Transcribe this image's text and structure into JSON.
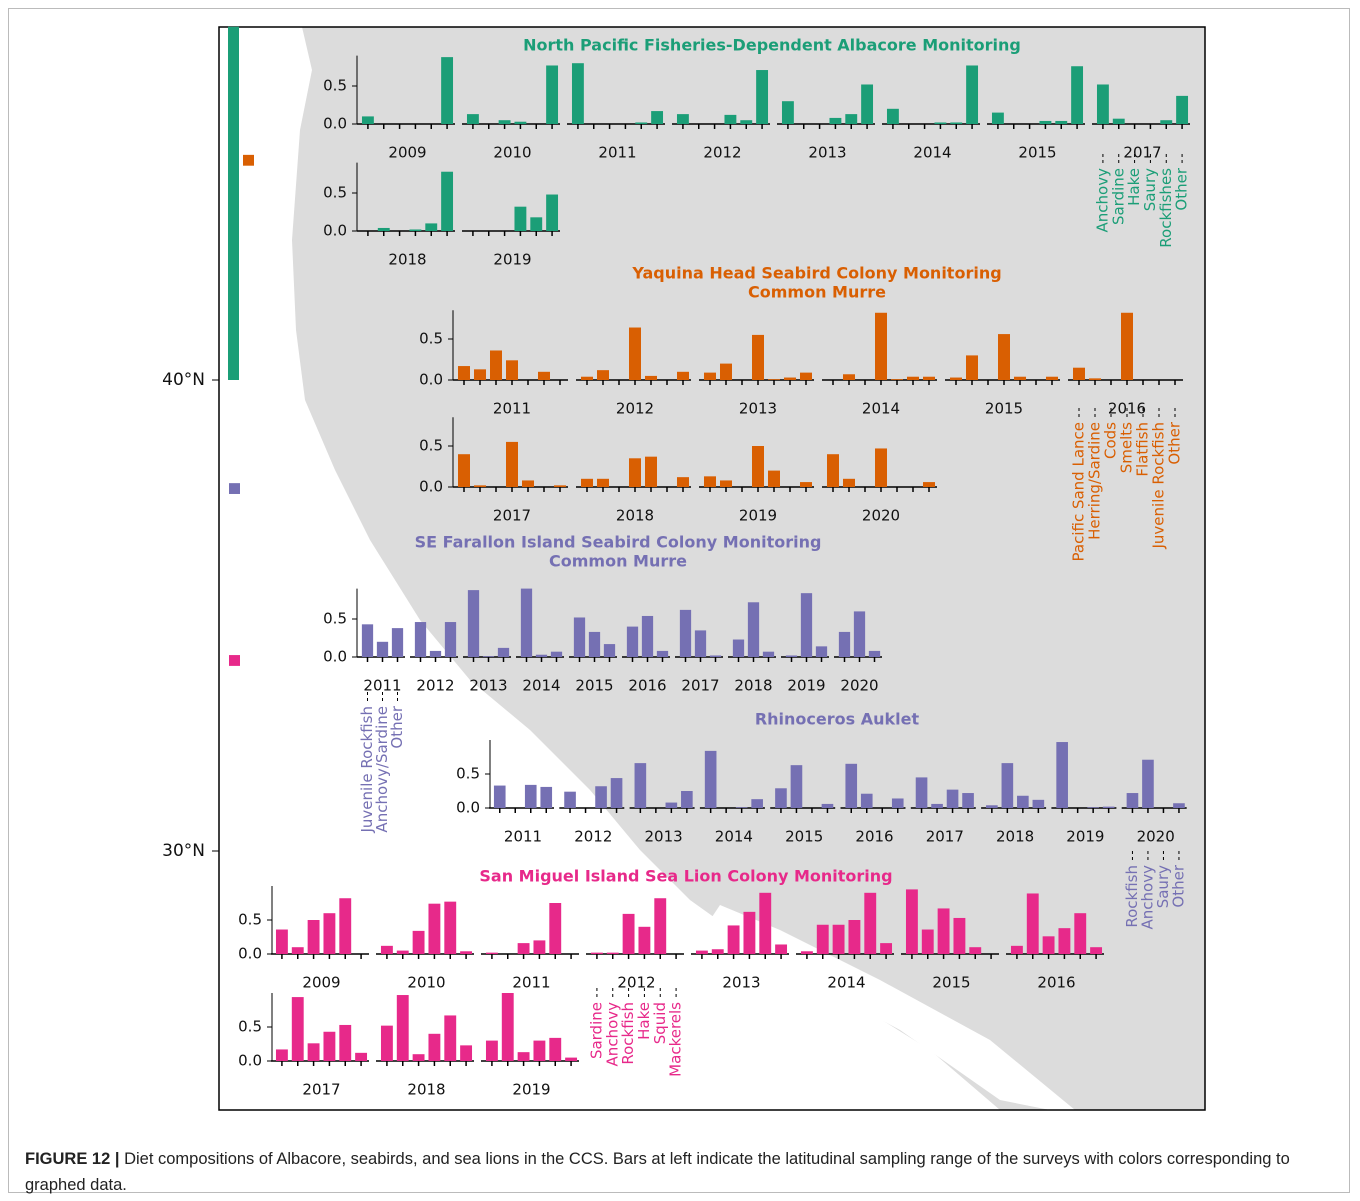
{
  "chart_data": [
    {
      "type": "bar",
      "title": "North Pacific Fisheries-Dependent Albacore Monitoring",
      "color": "#1b9e77",
      "categories": [
        "Anchovy",
        "Sardine",
        "Hake",
        "Saury",
        "Rockfishes",
        "Other"
      ],
      "ylim": [
        0,
        0.9
      ],
      "yticks": [
        {
          "value": 0,
          "label": "0.0"
        },
        0.5
      ],
      "panels": [
        {
          "label": "2009",
          "values": [
            0.1,
            0,
            0,
            0,
            0,
            0.88
          ]
        },
        {
          "label": "2010",
          "values": [
            0.13,
            0,
            0.05,
            0.03,
            0,
            0.77
          ]
        },
        {
          "label": "2011",
          "values": [
            0.8,
            0,
            0,
            0,
            0.02,
            0.17
          ]
        },
        {
          "label": "2012",
          "values": [
            0.13,
            0,
            0,
            0.12,
            0.05,
            0.71
          ]
        },
        {
          "label": "2013",
          "values": [
            0.3,
            0,
            0,
            0.08,
            0.13,
            0.52
          ]
        },
        {
          "label": "2014",
          "values": [
            0.2,
            0,
            0,
            0.02,
            0.02,
            0.77
          ]
        },
        {
          "label": "2015",
          "values": [
            0.15,
            0,
            0,
            0.04,
            0.04,
            0.76
          ]
        },
        {
          "label": "2017",
          "values": [
            0.52,
            0.07,
            0,
            0,
            0.05,
            0.37
          ]
        },
        {
          "label": "2018",
          "values": [
            0,
            0.04,
            0,
            0.02,
            0.1,
            0.78
          ]
        },
        {
          "label": "2019",
          "values": [
            0,
            0,
            0,
            0.32,
            0.18,
            0.48
          ]
        }
      ]
    },
    {
      "type": "bar",
      "title": "Yaquina Head Seabird Colony Monitoring",
      "subtitle": "Common Murre",
      "color": "#d95f02",
      "categories": [
        "Pacific Sand Lance",
        "Herring/Sardine",
        "Cods",
        "Smelts",
        "Flatfish",
        "Juvenile Rockfish",
        "Other"
      ],
      "ylim": [
        0,
        0.85
      ],
      "yticks": [
        {
          "value": 0,
          "label": "0.0"
        },
        0.5
      ],
      "panels": [
        {
          "label": "2011",
          "values": [
            0.17,
            0.13,
            0.36,
            0.24,
            0,
            0.1,
            0
          ]
        },
        {
          "label": "2012",
          "values": [
            0.04,
            0.12,
            0,
            0.64,
            0.05,
            0,
            0.1
          ]
        },
        {
          "label": "2013",
          "values": [
            0.09,
            0.2,
            0,
            0.55,
            0.01,
            0.03,
            0.09
          ]
        },
        {
          "label": "2014",
          "values": [
            0,
            0.07,
            0,
            0.82,
            0.01,
            0.04,
            0.04
          ]
        },
        {
          "label": "2015",
          "values": [
            0.03,
            0.3,
            0,
            0.56,
            0.04,
            0,
            0.04
          ]
        },
        {
          "label": "2016",
          "values": [
            0.15,
            0.02,
            0,
            0.82,
            0,
            0,
            0
          ]
        },
        {
          "label": "2017",
          "values": [
            0.4,
            0.02,
            0,
            0.55,
            0.08,
            0,
            0.02
          ]
        },
        {
          "label": "2018",
          "values": [
            0.1,
            0.1,
            0,
            0.35,
            0.37,
            0,
            0.12
          ]
        },
        {
          "label": "2019",
          "values": [
            0.13,
            0.08,
            0,
            0.5,
            0.2,
            0,
            0.06
          ]
        },
        {
          "label": "2020",
          "values": [
            0.4,
            0.1,
            0,
            0.47,
            0,
            0,
            0.06
          ]
        }
      ]
    },
    {
      "type": "bar",
      "title": "SE Farallon Island Seabird Colony Monitoring",
      "subtitle": "Common Murre",
      "color": "#7570b3",
      "categories": [
        "Juvenile Rockfish",
        "Anchovy/Sardine",
        "Other"
      ],
      "ylim": [
        0,
        0.9
      ],
      "yticks": [
        {
          "value": 0,
          "label": "0.0"
        },
        0.5
      ],
      "panels": [
        {
          "label": "2011",
          "values": [
            0.43,
            0.2,
            0.38
          ]
        },
        {
          "label": "2012",
          "values": [
            0.46,
            0.08,
            0.46
          ]
        },
        {
          "label": "2013",
          "values": [
            0.88,
            0.01,
            0.12
          ]
        },
        {
          "label": "2014",
          "values": [
            0.9,
            0.03,
            0.07
          ]
        },
        {
          "label": "2015",
          "values": [
            0.52,
            0.33,
            0.17
          ]
        },
        {
          "label": "2016",
          "values": [
            0.4,
            0.54,
            0.08
          ]
        },
        {
          "label": "2017",
          "values": [
            0.62,
            0.35,
            0.02
          ]
        },
        {
          "label": "2018",
          "values": [
            0.23,
            0.72,
            0.07
          ]
        },
        {
          "label": "2019",
          "values": [
            0.02,
            0.84,
            0.14
          ]
        },
        {
          "label": "2020",
          "values": [
            0.33,
            0.6,
            0.08
          ]
        }
      ]
    },
    {
      "type": "bar",
      "title": "Rhinoceros Auklet",
      "color": "#7570b3",
      "categories": [
        "Rockfish",
        "Anchovy",
        "Saury",
        "Other"
      ],
      "ylim": [
        0,
        1.0
      ],
      "yticks": [
        {
          "value": 0,
          "label": "0.0"
        },
        0.5
      ],
      "panels": [
        {
          "label": "2011",
          "values": [
            0.33,
            0,
            0.34,
            0.31
          ]
        },
        {
          "label": "2012",
          "values": [
            0.24,
            0,
            0.32,
            0.44
          ]
        },
        {
          "label": "2013",
          "values": [
            0.66,
            0,
            0.08,
            0.25
          ]
        },
        {
          "label": "2014",
          "values": [
            0.84,
            0,
            0.01,
            0.13
          ]
        },
        {
          "label": "2015",
          "values": [
            0.29,
            0.63,
            0,
            0.06
          ]
        },
        {
          "label": "2016",
          "values": [
            0.65,
            0.21,
            0,
            0.14
          ]
        },
        {
          "label": "2017",
          "values": [
            0.45,
            0.06,
            0.27,
            0.22
          ]
        },
        {
          "label": "2018",
          "values": [
            0.04,
            0.66,
            0.18,
            0.12
          ]
        },
        {
          "label": "2019",
          "values": [
            0.97,
            0,
            0.01,
            0.02
          ]
        },
        {
          "label": "2020",
          "values": [
            0.22,
            0.71,
            0,
            0.07
          ]
        }
      ]
    },
    {
      "type": "bar",
      "title": "San Miguel Island Sea Lion Colony Monitoring",
      "color": "#e7298a",
      "categories": [
        "Sardine",
        "Anchovy",
        "Rockfish",
        "Hake",
        "Squid",
        "Mackerels"
      ],
      "ylim": [
        0,
        1.0
      ],
      "yticks": [
        {
          "value": 0,
          "label": "0.0"
        },
        0.5
      ],
      "panels": [
        {
          "label": "2009",
          "values": [
            0.36,
            0.1,
            0.5,
            0.6,
            0.82,
            0
          ]
        },
        {
          "label": "2010",
          "values": [
            0.12,
            0.05,
            0.34,
            0.74,
            0.77,
            0.04
          ]
        },
        {
          "label": "2011",
          "values": [
            0.02,
            0,
            0.16,
            0.2,
            0.75,
            0
          ]
        },
        {
          "label": "2012",
          "values": [
            0.02,
            0.02,
            0.59,
            0.4,
            0.82,
            0
          ]
        },
        {
          "label": "2013",
          "values": [
            0.05,
            0.07,
            0.42,
            0.62,
            0.9,
            0.14
          ]
        },
        {
          "label": "2014",
          "values": [
            0.04,
            0.43,
            0.43,
            0.5,
            0.9,
            0.16
          ]
        },
        {
          "label": "2015",
          "values": [
            0.95,
            0.36,
            0.67,
            0.53,
            0.1,
            0
          ]
        },
        {
          "label": "2016",
          "values": [
            0.12,
            0.89,
            0.26,
            0.38,
            0.6,
            0.1
          ]
        },
        {
          "label": "2017",
          "values": [
            0.17,
            0.94,
            0.26,
            0.43,
            0.53,
            0.12
          ]
        },
        {
          "label": "2018",
          "values": [
            0.52,
            0.97,
            0.1,
            0.4,
            0.67,
            0.23
          ]
        },
        {
          "label": "2019",
          "values": [
            0.3,
            1.0,
            0.13,
            0.3,
            0.34,
            0.05
          ]
        }
      ]
    },
    {
      "type": "range",
      "ylim": [
        24.5,
        47.5
      ],
      "yticks": [
        {
          "value": 30,
          "label": "30°N"
        },
        {
          "value": 40,
          "label": "40°N"
        }
      ],
      "series": [
        {
          "color": "#1b9e77",
          "values": [
            40,
            47.5
          ]
        },
        {
          "color": "#d95f02",
          "values": [
            44.55,
            44.78
          ]
        },
        {
          "color": "#7570b3",
          "values": [
            37.58,
            37.81
          ]
        },
        {
          "color": "#e7298a",
          "values": [
            33.93,
            34.16
          ]
        }
      ]
    }
  ],
  "caption": {
    "label": "FIGURE 12 |",
    "text": "Diet compositions of Albacore, seabirds, and sea lions in the CCS. Bars at left indicate the latitudinal sampling range of the surveys with colors corresponding to graphed data."
  }
}
